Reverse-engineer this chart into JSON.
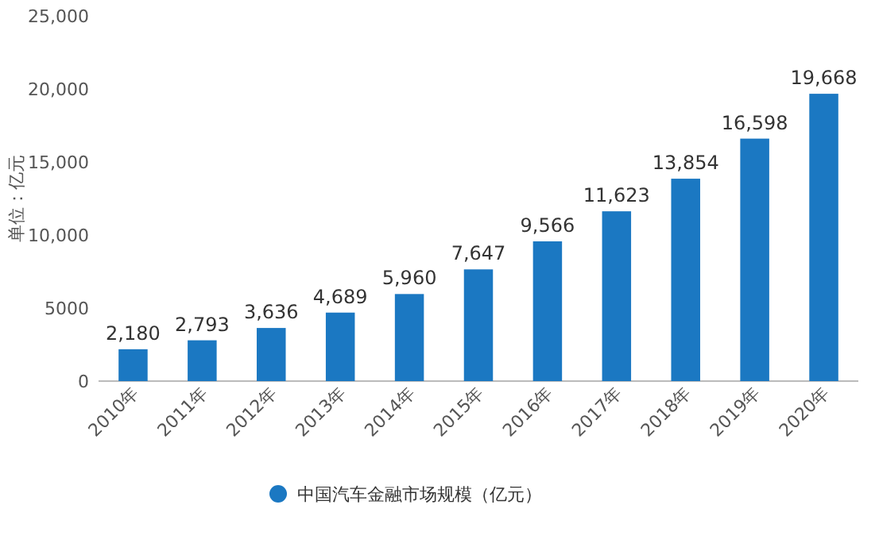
{
  "chart_data": {
    "type": "bar",
    "categories": [
      "2010年",
      "2011年",
      "2012年",
      "2013年",
      "2014年",
      "2015年",
      "2016年",
      "2017年",
      "2018年",
      "2019年",
      "2020年"
    ],
    "series": [
      {
        "name": "中国汽车金融市场规模（亿元）",
        "color": "#1b78c2",
        "values": [
          2180,
          2793,
          3636,
          4689,
          5960,
          7647,
          9566,
          11623,
          13854,
          16598,
          19668
        ],
        "value_labels": [
          "2,180",
          "2,793",
          "3,636",
          "4,689",
          "5,960",
          "7,647",
          "9,566",
          "11,623",
          "13,854",
          "16,598",
          "19,668"
        ]
      }
    ],
    "ylabel": "单位：亿元",
    "ylim": [
      0,
      25000
    ],
    "yticks": [
      0,
      5000,
      {
        "value": 10000,
        "label": "10,000"
      },
      {
        "value": 15000,
        "label": "15,000"
      },
      {
        "value": 20000,
        "label": "20,000"
      },
      {
        "value": 25000,
        "label": "25,000"
      }
    ],
    "legend": "bottom"
  }
}
